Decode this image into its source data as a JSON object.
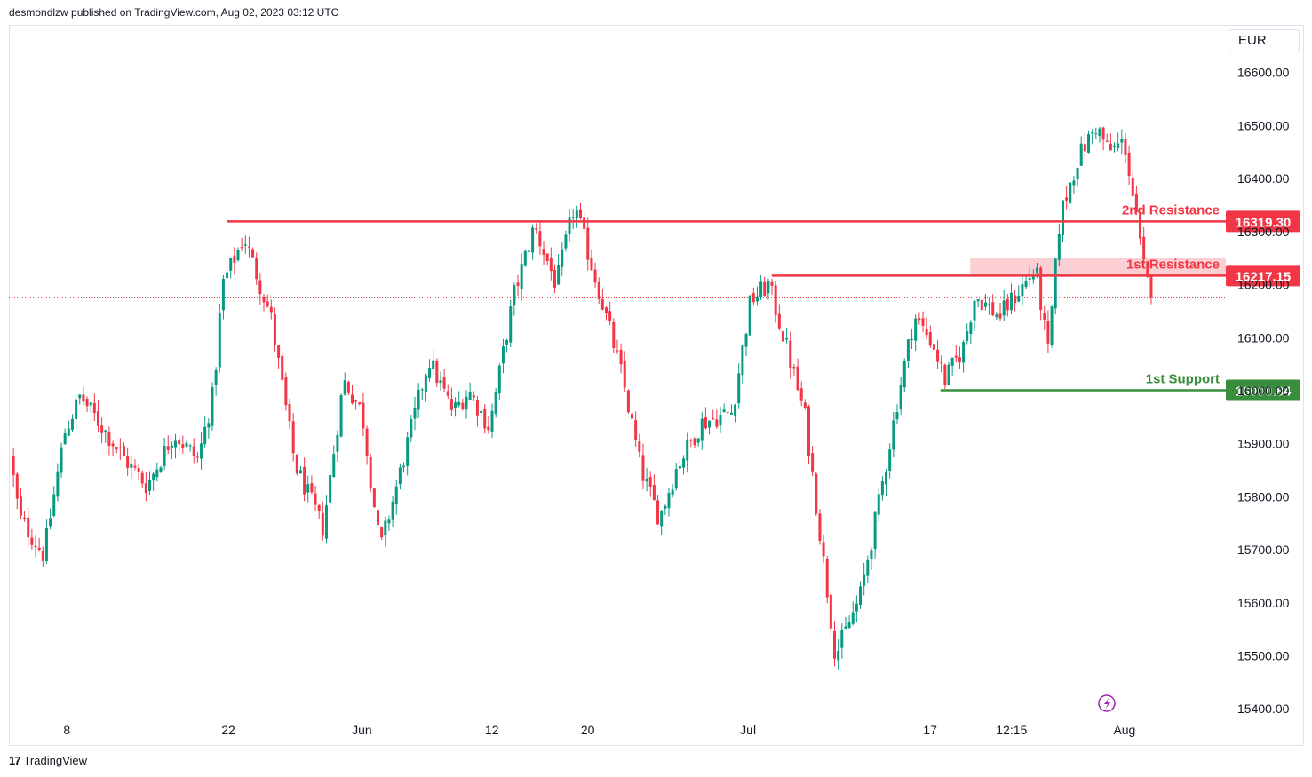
{
  "header": {
    "publisher_line": "desmondlzw published on TradingView.com, Aug 02, 2023 03:12 UTC"
  },
  "currency": "EUR",
  "footer": {
    "logo_mark": "17",
    "logo_text": "TradingView"
  },
  "colors": {
    "up": "#089981",
    "down": "#f23645",
    "resistance": "#f23645",
    "support": "#388e3c",
    "zone": "#fbcfd3",
    "current_price_line": "#f23645"
  },
  "chart_data": {
    "type": "candlestick",
    "title": "",
    "ylim": [
      15330,
      16690
    ],
    "y_ticks": [
      "16600.00",
      "16500.00",
      "16400.00",
      "16300.00",
      "16200.00",
      "16100.00",
      "16000.00",
      "15900.00",
      "15800.00",
      "15700.00",
      "15600.00",
      "15500.00",
      "15400.00"
    ],
    "x_ticks": [
      {
        "label": "8",
        "pos": 0.047
      },
      {
        "label": "22",
        "pos": 0.18
      },
      {
        "label": "Jun",
        "pos": 0.29
      },
      {
        "label": "12",
        "pos": 0.397
      },
      {
        "label": "20",
        "pos": 0.476
      },
      {
        "label": "Jul",
        "pos": 0.608
      },
      {
        "label": "17",
        "pos": 0.758
      },
      {
        "label": "12:15",
        "pos": 0.825
      },
      {
        "label": "Aug",
        "pos": 0.918
      }
    ],
    "current_price": 16175,
    "levels": [
      {
        "name": "2nd Resistance",
        "value": 16319.3,
        "label": "16319.30",
        "start": 0.179,
        "kind": "resistance"
      },
      {
        "name": "1st Resistance",
        "value": 16217.15,
        "label": "16217.15",
        "start": 0.6275,
        "kind": "resistance"
      },
      {
        "name": "1st Support",
        "value": 16000.84,
        "label": "16000.84",
        "start": 0.7665,
        "kind": "support"
      }
    ],
    "zone": {
      "from": 16217.15,
      "to": 16250,
      "start": 0.791
    },
    "anchors": [
      {
        "t": 0.0,
        "v": 15880
      },
      {
        "t": 0.008,
        "v": 15760
      },
      {
        "t": 0.028,
        "v": 15690
      },
      {
        "t": 0.045,
        "v": 15920
      },
      {
        "t": 0.058,
        "v": 15990
      },
      {
        "t": 0.095,
        "v": 15870
      },
      {
        "t": 0.113,
        "v": 15820
      },
      {
        "t": 0.135,
        "v": 15920
      },
      {
        "t": 0.155,
        "v": 15870
      },
      {
        "t": 0.168,
        "v": 16000
      },
      {
        "t": 0.175,
        "v": 16200
      },
      {
        "t": 0.193,
        "v": 16290
      },
      {
        "t": 0.215,
        "v": 16140
      },
      {
        "t": 0.235,
        "v": 15860
      },
      {
        "t": 0.258,
        "v": 15740
      },
      {
        "t": 0.275,
        "v": 16020
      },
      {
        "t": 0.29,
        "v": 15960
      },
      {
        "t": 0.305,
        "v": 15700
      },
      {
        "t": 0.322,
        "v": 15850
      },
      {
        "t": 0.345,
        "v": 16060
      },
      {
        "t": 0.365,
        "v": 15960
      },
      {
        "t": 0.378,
        "v": 16000
      },
      {
        "t": 0.395,
        "v": 15930
      },
      {
        "t": 0.415,
        "v": 16180
      },
      {
        "t": 0.432,
        "v": 16310
      },
      {
        "t": 0.45,
        "v": 16200
      },
      {
        "t": 0.465,
        "v": 16350
      },
      {
        "t": 0.475,
        "v": 16270
      },
      {
        "t": 0.49,
        "v": 16150
      },
      {
        "t": 0.505,
        "v": 16020
      },
      {
        "t": 0.52,
        "v": 15850
      },
      {
        "t": 0.535,
        "v": 15760
      },
      {
        "t": 0.55,
        "v": 15860
      },
      {
        "t": 0.57,
        "v": 15940
      },
      {
        "t": 0.595,
        "v": 15960
      },
      {
        "t": 0.61,
        "v": 16170
      },
      {
        "t": 0.625,
        "v": 16200
      },
      {
        "t": 0.64,
        "v": 16080
      },
      {
        "t": 0.655,
        "v": 15950
      },
      {
        "t": 0.67,
        "v": 15680
      },
      {
        "t": 0.68,
        "v": 15500
      },
      {
        "t": 0.7,
        "v": 15610
      },
      {
        "t": 0.715,
        "v": 15780
      },
      {
        "t": 0.735,
        "v": 16030
      },
      {
        "t": 0.745,
        "v": 16140
      },
      {
        "t": 0.76,
        "v": 16090
      },
      {
        "t": 0.77,
        "v": 16020
      },
      {
        "t": 0.785,
        "v": 16080
      },
      {
        "t": 0.795,
        "v": 16180
      },
      {
        "t": 0.815,
        "v": 16140
      },
      {
        "t": 0.835,
        "v": 16200
      },
      {
        "t": 0.845,
        "v": 16230
      },
      {
        "t": 0.855,
        "v": 16070
      },
      {
        "t": 0.865,
        "v": 16330
      },
      {
        "t": 0.88,
        "v": 16440
      },
      {
        "t": 0.895,
        "v": 16500
      },
      {
        "t": 0.905,
        "v": 16450
      },
      {
        "t": 0.918,
        "v": 16470
      },
      {
        "t": 0.928,
        "v": 16320
      },
      {
        "t": 0.933,
        "v": 16240
      },
      {
        "t": 0.94,
        "v": 16175
      }
    ]
  }
}
